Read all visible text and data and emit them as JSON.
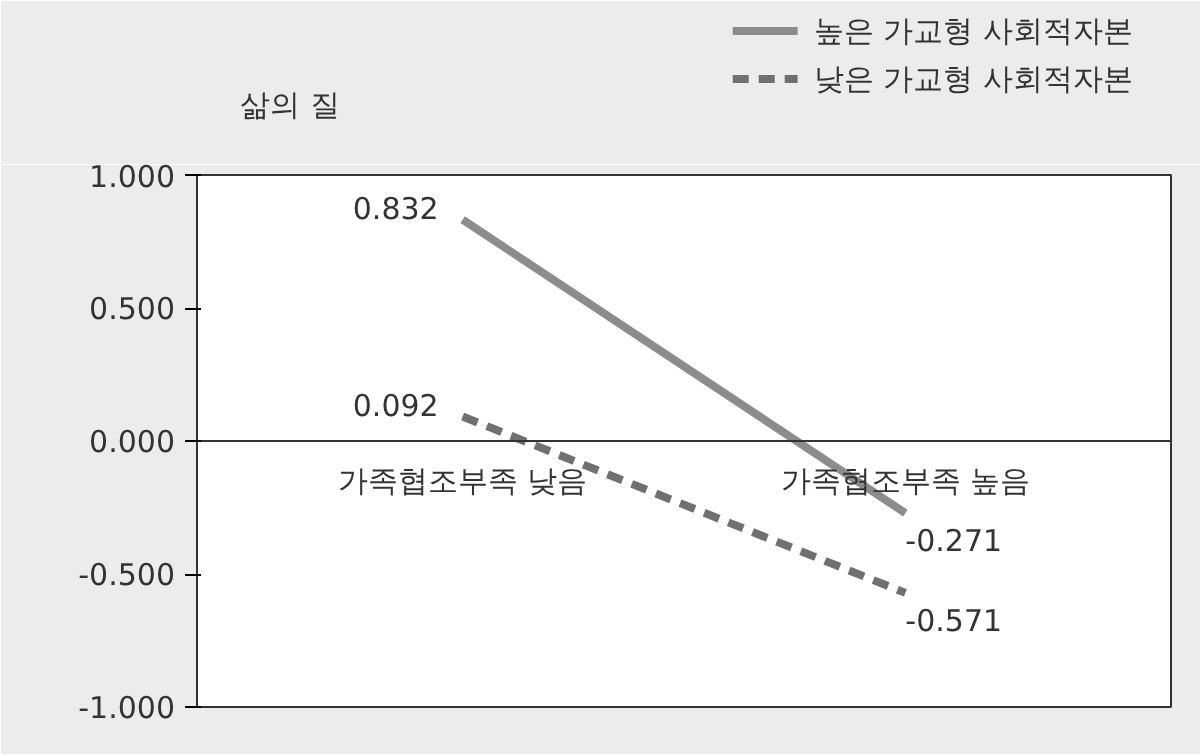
{
  "chart_data": {
    "type": "line",
    "ylabel": "삶의 질",
    "categories": [
      "가족협조부족 낮음",
      "가족협조부족 높음"
    ],
    "series": [
      {
        "name": "높은 가교형 사회적자본",
        "color": "#8c8c8c",
        "values": [
          0.832,
          -0.271
        ],
        "line_style": "solid"
      },
      {
        "name": "낮은 가교형 사회적자본",
        "color": "#707070",
        "values": [
          0.092,
          -0.571
        ],
        "line_style": "dashed"
      }
    ],
    "ylim": [
      -1,
      1
    ],
    "yticks": [
      {
        "value": 1,
        "label": "1.000"
      },
      {
        "value": 0.5,
        "label": "0.500"
      },
      {
        "value": 0,
        "label": "0.000"
      },
      {
        "value": -0.5,
        "label": "-0.500"
      },
      {
        "value": -1,
        "label": "-1.000"
      }
    ],
    "data_labels": true,
    "grid": false,
    "legend": "top right",
    "marker": "none"
  }
}
